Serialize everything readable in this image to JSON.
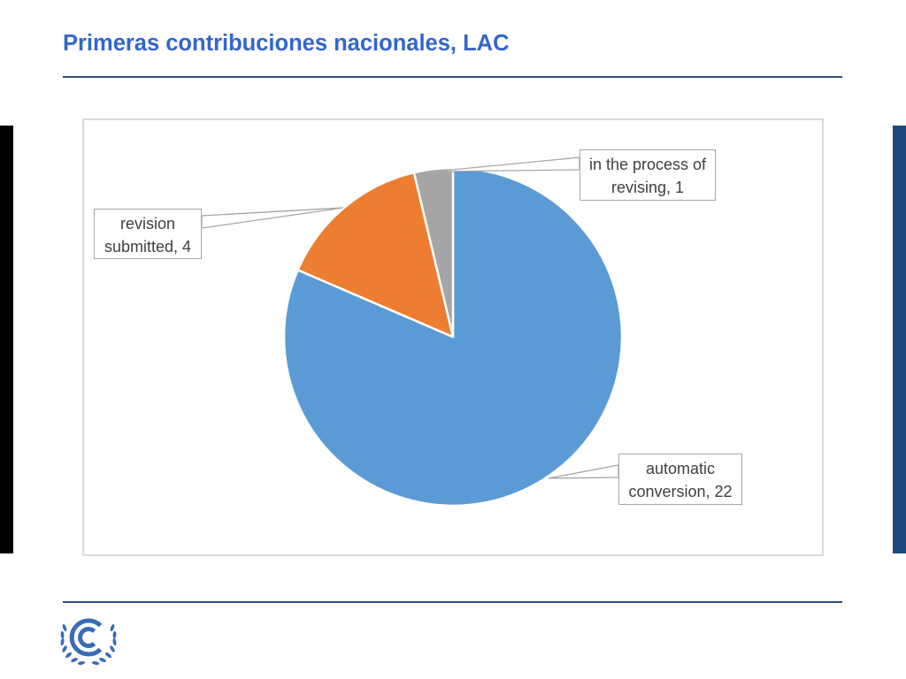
{
  "slide": {
    "title": "Primeras contribuciones nacionales, LAC"
  },
  "logo": {
    "icon": "unfccc-emblem",
    "color": "#3a6bb5"
  },
  "chart_data": {
    "type": "pie",
    "categories": [
      "automatic conversion",
      "revision submitted",
      "in the process of revising"
    ],
    "values": [
      22,
      4,
      1
    ],
    "colors": [
      "#5b9bd5",
      "#ed7d31",
      "#a5a5a5"
    ],
    "legend": "none"
  }
}
